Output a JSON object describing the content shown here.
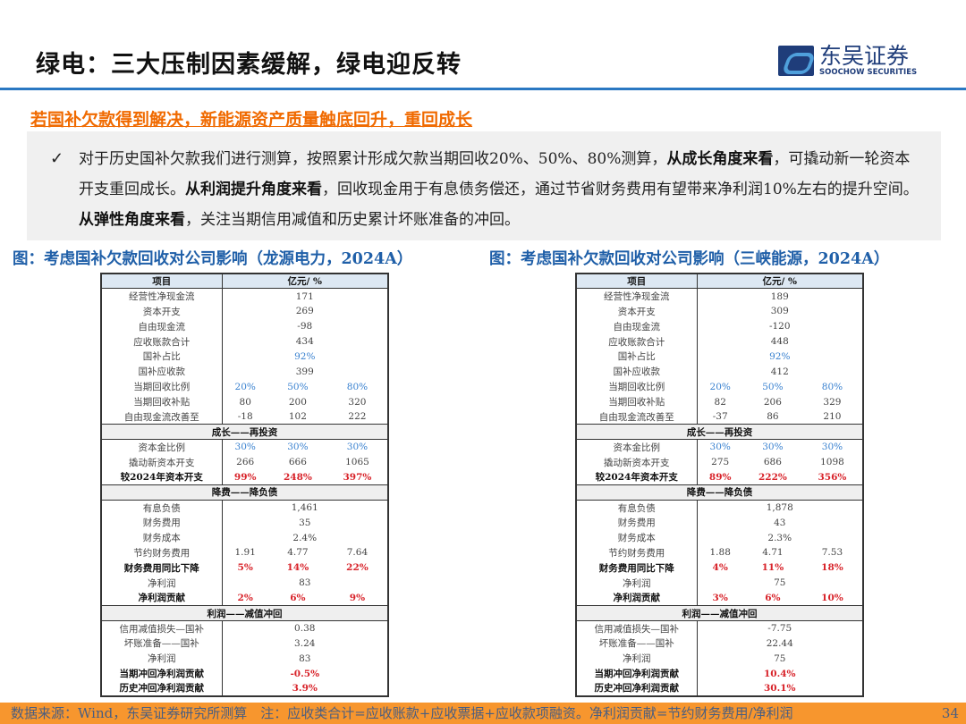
{
  "header": {
    "title": "绿电：三大压制因素缓解，绿电迎反转",
    "logo_cn": "东吴证券",
    "logo_en": "SOOCHOW SECURITIES"
  },
  "subtitle": "若国补欠款得到解决，新能源资产质量触底回升，重回成长",
  "summary": {
    "check": "✓",
    "parts": [
      {
        "t": "对于历史国补欠款我们进行测算，按照累计形成欠款当期回收20%、50%、80%测算，",
        "b": false
      },
      {
        "t": "从成长角度来看",
        "b": true
      },
      {
        "t": "，可撬动新一轮资本开支重回成长。",
        "b": false
      },
      {
        "t": "从利润提升角度来看",
        "b": true
      },
      {
        "t": "，回收现金用于有息债务偿还，通过节省财务费用有望带来净利润10%左右的提升空间。",
        "b": false
      },
      {
        "t": "从弹性角度来看",
        "b": true
      },
      {
        "t": "，关注当期信用减值和历史累计坏账准备的冲回。",
        "b": false
      }
    ]
  },
  "tables": [
    {
      "caption": "图：考虑国补欠款回收对公司影响（龙源电力，2024A）",
      "head": [
        "项目",
        "亿元/ %"
      ],
      "rows": [
        {
          "l": "经营性净现金流",
          "v": "171"
        },
        {
          "l": "资本开支",
          "v": "269"
        },
        {
          "l": "自由现金流",
          "v": "-98"
        },
        {
          "l": "应收账款合计",
          "v": "434"
        },
        {
          "l": "国补占比",
          "v": "92%",
          "s": "blue"
        },
        {
          "l": "国补应收款",
          "v": "399"
        },
        {
          "l": "当期回收比例",
          "vs": [
            "20%",
            "50%",
            "80%"
          ],
          "s": "blue"
        },
        {
          "l": "当期回收补贴",
          "vs": [
            "80",
            "200",
            "320"
          ]
        },
        {
          "l": "自由现金流改善至",
          "vs": [
            "-18",
            "102",
            "222"
          ]
        },
        {
          "sec": "成长——再投资"
        },
        {
          "l": "资本金比例",
          "vs": [
            "30%",
            "30%",
            "30%"
          ],
          "s": "blue"
        },
        {
          "l": "撬动新资本开支",
          "vs": [
            "266",
            "666",
            "1065"
          ]
        },
        {
          "l": "较2024年资本开支",
          "vs": [
            "99%",
            "248%",
            "397%"
          ],
          "s": "red",
          "b": true
        },
        {
          "sec": "降费——降负债"
        },
        {
          "l": "有息负债",
          "v": "1,461"
        },
        {
          "l": "财务费用",
          "v": "35"
        },
        {
          "l": "财务成本",
          "v": "2.4%"
        },
        {
          "l": "节约财务费用",
          "vs": [
            "1.91",
            "4.77",
            "7.64"
          ]
        },
        {
          "l": "财务费用同比下降",
          "vs": [
            "5%",
            "14%",
            "22%"
          ],
          "s": "red",
          "b": true
        },
        {
          "l": "净利润",
          "v": "83"
        },
        {
          "l": "净利润贡献",
          "vs": [
            "2%",
            "6%",
            "9%"
          ],
          "s": "red",
          "b": true
        },
        {
          "sec": "利润——减值冲回"
        },
        {
          "l": "信用减值损失—国补",
          "v": "0.38"
        },
        {
          "l": "坏账准备——国补",
          "v": "3.24"
        },
        {
          "l": "净利润",
          "v": "83"
        },
        {
          "l": "当期冲回净利润贡献",
          "v": "-0.5%",
          "s": "red",
          "b": true
        },
        {
          "l": "历史冲回净利润贡献",
          "v": "3.9%",
          "s": "red",
          "b": true
        }
      ]
    },
    {
      "caption": "图：考虑国补欠款回收对公司影响（三峡能源，2024A）",
      "head": [
        "项目",
        "亿元/ %"
      ],
      "rows": [
        {
          "l": "经营性净现金流",
          "v": "189"
        },
        {
          "l": "资本开支",
          "v": "309"
        },
        {
          "l": "自由现金流",
          "v": "-120"
        },
        {
          "l": "应收账款合计",
          "v": "448"
        },
        {
          "l": "国补占比",
          "v": "92%",
          "s": "blue"
        },
        {
          "l": "国补应收款",
          "v": "412"
        },
        {
          "l": "当期回收比例",
          "vs": [
            "20%",
            "50%",
            "80%"
          ],
          "s": "blue"
        },
        {
          "l": "当期回收补贴",
          "vs": [
            "82",
            "206",
            "329"
          ]
        },
        {
          "l": "自由现金流改善至",
          "vs": [
            "-37",
            "86",
            "210"
          ]
        },
        {
          "sec": "成长——再投资"
        },
        {
          "l": "资本金比例",
          "vs": [
            "30%",
            "30%",
            "30%"
          ],
          "s": "blue"
        },
        {
          "l": "撬动新资本开支",
          "vs": [
            "275",
            "686",
            "1098"
          ]
        },
        {
          "l": "较2024年资本开支",
          "vs": [
            "89%",
            "222%",
            "356%"
          ],
          "s": "red",
          "b": true
        },
        {
          "sec": "降费——降负债"
        },
        {
          "l": "有息负债",
          "v": "1,878"
        },
        {
          "l": "财务费用",
          "v": "43"
        },
        {
          "l": "财务成本",
          "v": "2.3%"
        },
        {
          "l": "节约财务费用",
          "vs": [
            "1.88",
            "4.71",
            "7.53"
          ]
        },
        {
          "l": "财务费用同比下降",
          "vs": [
            "4%",
            "11%",
            "18%"
          ],
          "s": "red",
          "b": true
        },
        {
          "l": "净利润",
          "v": "75"
        },
        {
          "l": "净利润贡献",
          "vs": [
            "3%",
            "6%",
            "10%"
          ],
          "s": "red",
          "b": true
        },
        {
          "sec": "利润——减值冲回"
        },
        {
          "l": "信用减值损失—国补",
          "v": "-7.75"
        },
        {
          "l": "坏账准备——国补",
          "v": "22.44"
        },
        {
          "l": "净利润",
          "v": "75"
        },
        {
          "l": "当期冲回净利润贡献",
          "v": "10.4%",
          "s": "red",
          "b": true
        },
        {
          "l": "历史冲回净利润贡献",
          "v": "30.1%",
          "s": "red",
          "b": true
        }
      ]
    }
  ],
  "footer": {
    "text": "数据来源：Wind，东吴证券研究所测算　注：应收类合计=应收账款+应收票据+应收款项融资。净利润贡献=节约财务费用/净利润",
    "page": "34"
  },
  "colors": {
    "accent_blue": "#2a78c2",
    "subtitle_orange": "#f06a00",
    "footer_bg": "#f7962e",
    "red": "#d8232a"
  }
}
